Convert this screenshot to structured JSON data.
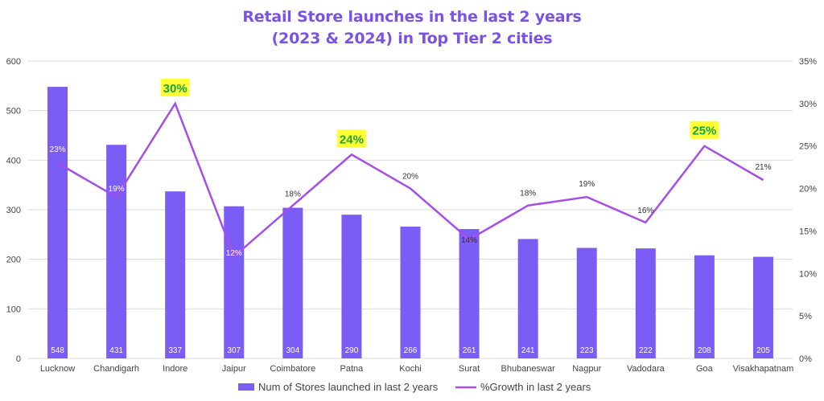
{
  "chart_data": {
    "type": "bar+line",
    "title": "Retail Store launches in the last 2 years",
    "subtitle": "(2023 & 2024) in Top Tier 2 cities",
    "categories": [
      "Lucknow",
      "Chandigarh",
      "Indore",
      "Jaipur",
      "Coimbatore",
      "Patna",
      "Kochi",
      "Surat",
      "Bhubaneswar",
      "Nagpur",
      "Vadodara",
      "Goa",
      "Visakhapatnam"
    ],
    "series": [
      {
        "name": "Num of Stores launched in last 2 years",
        "type": "bar",
        "axis": "left",
        "values": [
          548,
          431,
          337,
          307,
          304,
          290,
          266,
          261,
          241,
          223,
          222,
          208,
          205
        ],
        "data_labels": [
          "548",
          "431",
          "337",
          "307",
          "304",
          "290",
          "266",
          "261",
          "241",
          "223",
          "222",
          "208",
          "205"
        ],
        "color": "#7b5cf5"
      },
      {
        "name": "%Growth in last 2 years",
        "type": "line",
        "axis": "right",
        "values": [
          23,
          19,
          30,
          12,
          18,
          24,
          20,
          14,
          18,
          19,
          16,
          25,
          21
        ],
        "data_labels": [
          "23%",
          "19%",
          "30%",
          "12%",
          "18%",
          "24%",
          "20%",
          "14%",
          "18%",
          "19%",
          "16%",
          "25%",
          "21%"
        ],
        "highlight_indices": [
          2,
          5,
          11
        ],
        "color": "#a64ee8"
      }
    ],
    "y_left": {
      "min": 0,
      "max": 600,
      "ticks": [
        "0",
        "100",
        "200",
        "300",
        "400",
        "500",
        "600"
      ]
    },
    "y_right": {
      "min": 0,
      "max": 35,
      "ticks": [
        "0%",
        "5%",
        "10%",
        "15%",
        "20%",
        "25%",
        "30%",
        "35%"
      ]
    },
    "grid": true,
    "legend": "bottom-center",
    "colors": {
      "title": "#7a52e6",
      "bar": "#7b5cf5",
      "line": "#a64ee8",
      "highlight_bg": "#ffff33",
      "highlight_text": "#16a34a",
      "grid": "#d9d9d9",
      "axis_text": "#444444"
    }
  }
}
